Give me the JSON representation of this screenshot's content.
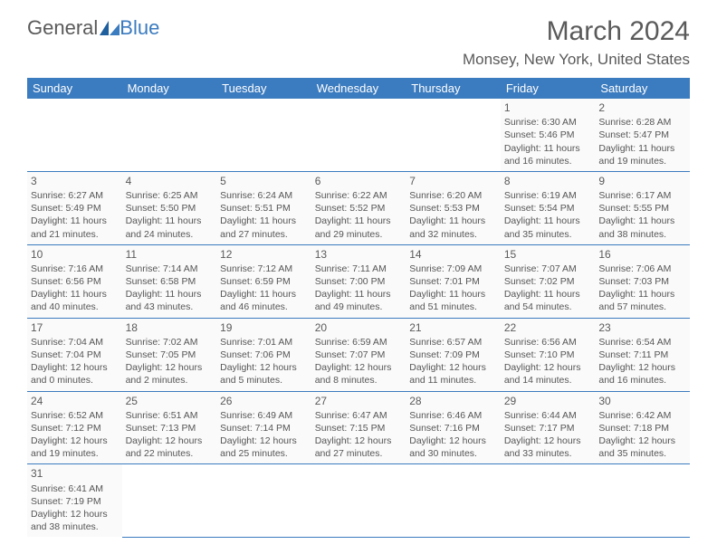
{
  "logo": {
    "part1": "General",
    "part2": "Blue"
  },
  "title": "March 2024",
  "location": "Monsey, New York, United States",
  "header_bg": "#3b7bbf",
  "header_fg": "#ffffff",
  "days_of_week": [
    "Sunday",
    "Monday",
    "Tuesday",
    "Wednesday",
    "Thursday",
    "Friday",
    "Saturday"
  ],
  "month_start_weekday": 5,
  "days_in_month": 31,
  "days": [
    {
      "n": 1,
      "sunrise": "6:30 AM",
      "sunset": "5:46 PM",
      "daylight": "11 hours and 16 minutes."
    },
    {
      "n": 2,
      "sunrise": "6:28 AM",
      "sunset": "5:47 PM",
      "daylight": "11 hours and 19 minutes."
    },
    {
      "n": 3,
      "sunrise": "6:27 AM",
      "sunset": "5:49 PM",
      "daylight": "11 hours and 21 minutes."
    },
    {
      "n": 4,
      "sunrise": "6:25 AM",
      "sunset": "5:50 PM",
      "daylight": "11 hours and 24 minutes."
    },
    {
      "n": 5,
      "sunrise": "6:24 AM",
      "sunset": "5:51 PM",
      "daylight": "11 hours and 27 minutes."
    },
    {
      "n": 6,
      "sunrise": "6:22 AM",
      "sunset": "5:52 PM",
      "daylight": "11 hours and 29 minutes."
    },
    {
      "n": 7,
      "sunrise": "6:20 AM",
      "sunset": "5:53 PM",
      "daylight": "11 hours and 32 minutes."
    },
    {
      "n": 8,
      "sunrise": "6:19 AM",
      "sunset": "5:54 PM",
      "daylight": "11 hours and 35 minutes."
    },
    {
      "n": 9,
      "sunrise": "6:17 AM",
      "sunset": "5:55 PM",
      "daylight": "11 hours and 38 minutes."
    },
    {
      "n": 10,
      "sunrise": "7:16 AM",
      "sunset": "6:56 PM",
      "daylight": "11 hours and 40 minutes."
    },
    {
      "n": 11,
      "sunrise": "7:14 AM",
      "sunset": "6:58 PM",
      "daylight": "11 hours and 43 minutes."
    },
    {
      "n": 12,
      "sunrise": "7:12 AM",
      "sunset": "6:59 PM",
      "daylight": "11 hours and 46 minutes."
    },
    {
      "n": 13,
      "sunrise": "7:11 AM",
      "sunset": "7:00 PM",
      "daylight": "11 hours and 49 minutes."
    },
    {
      "n": 14,
      "sunrise": "7:09 AM",
      "sunset": "7:01 PM",
      "daylight": "11 hours and 51 minutes."
    },
    {
      "n": 15,
      "sunrise": "7:07 AM",
      "sunset": "7:02 PM",
      "daylight": "11 hours and 54 minutes."
    },
    {
      "n": 16,
      "sunrise": "7:06 AM",
      "sunset": "7:03 PM",
      "daylight": "11 hours and 57 minutes."
    },
    {
      "n": 17,
      "sunrise": "7:04 AM",
      "sunset": "7:04 PM",
      "daylight": "12 hours and 0 minutes."
    },
    {
      "n": 18,
      "sunrise": "7:02 AM",
      "sunset": "7:05 PM",
      "daylight": "12 hours and 2 minutes."
    },
    {
      "n": 19,
      "sunrise": "7:01 AM",
      "sunset": "7:06 PM",
      "daylight": "12 hours and 5 minutes."
    },
    {
      "n": 20,
      "sunrise": "6:59 AM",
      "sunset": "7:07 PM",
      "daylight": "12 hours and 8 minutes."
    },
    {
      "n": 21,
      "sunrise": "6:57 AM",
      "sunset": "7:09 PM",
      "daylight": "12 hours and 11 minutes."
    },
    {
      "n": 22,
      "sunrise": "6:56 AM",
      "sunset": "7:10 PM",
      "daylight": "12 hours and 14 minutes."
    },
    {
      "n": 23,
      "sunrise": "6:54 AM",
      "sunset": "7:11 PM",
      "daylight": "12 hours and 16 minutes."
    },
    {
      "n": 24,
      "sunrise": "6:52 AM",
      "sunset": "7:12 PM",
      "daylight": "12 hours and 19 minutes."
    },
    {
      "n": 25,
      "sunrise": "6:51 AM",
      "sunset": "7:13 PM",
      "daylight": "12 hours and 22 minutes."
    },
    {
      "n": 26,
      "sunrise": "6:49 AM",
      "sunset": "7:14 PM",
      "daylight": "12 hours and 25 minutes."
    },
    {
      "n": 27,
      "sunrise": "6:47 AM",
      "sunset": "7:15 PM",
      "daylight": "12 hours and 27 minutes."
    },
    {
      "n": 28,
      "sunrise": "6:46 AM",
      "sunset": "7:16 PM",
      "daylight": "12 hours and 30 minutes."
    },
    {
      "n": 29,
      "sunrise": "6:44 AM",
      "sunset": "7:17 PM",
      "daylight": "12 hours and 33 minutes."
    },
    {
      "n": 30,
      "sunrise": "6:42 AM",
      "sunset": "7:18 PM",
      "daylight": "12 hours and 35 minutes."
    },
    {
      "n": 31,
      "sunrise": "6:41 AM",
      "sunset": "7:19 PM",
      "daylight": "12 hours and 38 minutes."
    }
  ],
  "labels": {
    "sunrise": "Sunrise:",
    "sunset": "Sunset:",
    "daylight": "Daylight:"
  }
}
